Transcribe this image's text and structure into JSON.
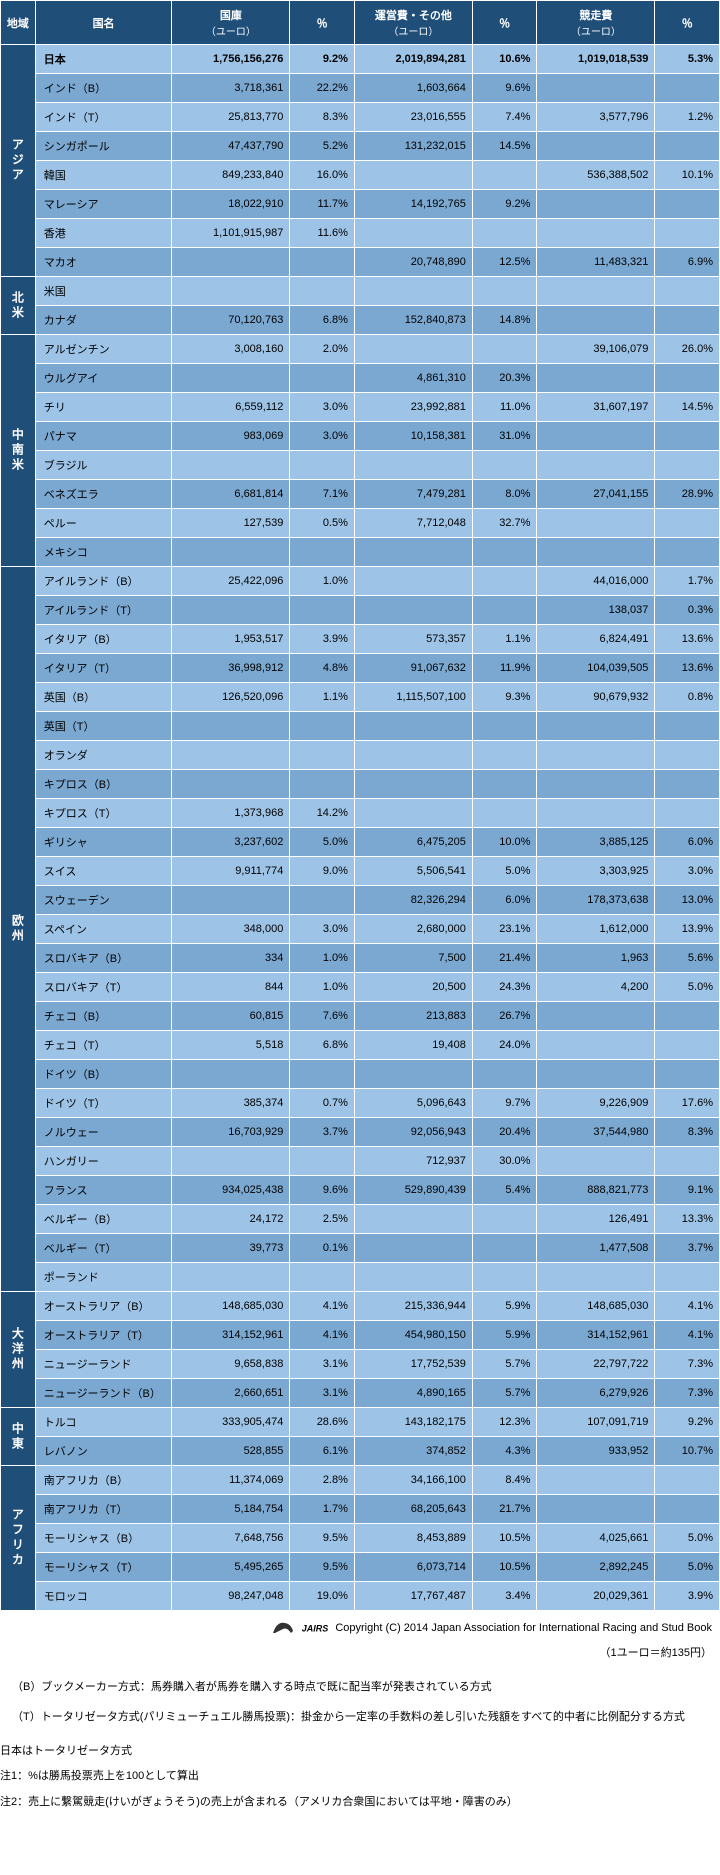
{
  "headers": {
    "region": "地域",
    "country": "国名",
    "treasury": "国庫",
    "treasury_unit": "（ユーロ）",
    "operating": "運営費・その他",
    "operating_unit": "（ユーロ）",
    "racing": "競走費",
    "racing_unit": "（ユーロ）",
    "pct": "％"
  },
  "regions": [
    {
      "name": "アジア",
      "rows": [
        {
          "country": "日本",
          "bold": true,
          "treasury": "1,756,156,276",
          "tpct": "9.2%",
          "operating": "2,019,894,281",
          "opct": "10.6%",
          "racing": "1,019,018,539",
          "rpct": "5.3%"
        },
        {
          "country": "インド（B）",
          "treasury": "3,718,361",
          "tpct": "22.2%",
          "operating": "1,603,664",
          "opct": "9.6%",
          "racing": "",
          "rpct": ""
        },
        {
          "country": "インド（T）",
          "treasury": "25,813,770",
          "tpct": "8.3%",
          "operating": "23,016,555",
          "opct": "7.4%",
          "racing": "3,577,796",
          "rpct": "1.2%"
        },
        {
          "country": "シンガポール",
          "treasury": "47,437,790",
          "tpct": "5.2%",
          "operating": "131,232,015",
          "opct": "14.5%",
          "racing": "",
          "rpct": ""
        },
        {
          "country": "韓国",
          "treasury": "849,233,840",
          "tpct": "16.0%",
          "operating": "",
          "opct": "",
          "racing": "536,388,502",
          "rpct": "10.1%"
        },
        {
          "country": "マレーシア",
          "treasury": "18,022,910",
          "tpct": "11.7%",
          "operating": "14,192,765",
          "opct": "9.2%",
          "racing": "",
          "rpct": ""
        },
        {
          "country": "香港",
          "treasury": "1,101,915,987",
          "tpct": "11.6%",
          "operating": "",
          "opct": "",
          "racing": "",
          "rpct": ""
        },
        {
          "country": "マカオ",
          "treasury": "",
          "tpct": "",
          "operating": "20,748,890",
          "opct": "12.5%",
          "racing": "11,483,321",
          "rpct": "6.9%"
        }
      ]
    },
    {
      "name": "北米",
      "rows": [
        {
          "country": "米国",
          "treasury": "",
          "tpct": "",
          "operating": "",
          "opct": "",
          "racing": "",
          "rpct": ""
        },
        {
          "country": "カナダ",
          "treasury": "70,120,763",
          "tpct": "6.8%",
          "operating": "152,840,873",
          "opct": "14.8%",
          "racing": "",
          "rpct": ""
        }
      ]
    },
    {
      "name": "中南米",
      "rows": [
        {
          "country": "アルゼンチン",
          "treasury": "3,008,160",
          "tpct": "2.0%",
          "operating": "",
          "opct": "",
          "racing": "39,106,079",
          "rpct": "26.0%"
        },
        {
          "country": "ウルグアイ",
          "treasury": "",
          "tpct": "",
          "operating": "4,861,310",
          "opct": "20.3%",
          "racing": "",
          "rpct": ""
        },
        {
          "country": "チリ",
          "treasury": "6,559,112",
          "tpct": "3.0%",
          "operating": "23,992,881",
          "opct": "11.0%",
          "racing": "31,607,197",
          "rpct": "14.5%"
        },
        {
          "country": "パナマ",
          "treasury": "983,069",
          "tpct": "3.0%",
          "operating": "10,158,381",
          "opct": "31.0%",
          "racing": "",
          "rpct": ""
        },
        {
          "country": "ブラジル",
          "treasury": "",
          "tpct": "",
          "operating": "",
          "opct": "",
          "racing": "",
          "rpct": ""
        },
        {
          "country": "ベネズエラ",
          "treasury": "6,681,814",
          "tpct": "7.1%",
          "operating": "7,479,281",
          "opct": "8.0%",
          "racing": "27,041,155",
          "rpct": "28.9%"
        },
        {
          "country": "ペルー",
          "treasury": "127,539",
          "tpct": "0.5%",
          "operating": "7,712,048",
          "opct": "32.7%",
          "racing": "",
          "rpct": ""
        },
        {
          "country": "メキシコ",
          "treasury": "",
          "tpct": "",
          "operating": "",
          "opct": "",
          "racing": "",
          "rpct": ""
        }
      ]
    },
    {
      "name": "欧州",
      "rows": [
        {
          "country": "アイルランド（B）",
          "treasury": "25,422,096",
          "tpct": "1.0%",
          "operating": "",
          "opct": "",
          "racing": "44,016,000",
          "rpct": "1.7%"
        },
        {
          "country": "アイルランド（T）",
          "treasury": "",
          "tpct": "",
          "operating": "",
          "opct": "",
          "racing": "138,037",
          "rpct": "0.3%"
        },
        {
          "country": "イタリア（B）",
          "treasury": "1,953,517",
          "tpct": "3.9%",
          "operating": "573,357",
          "opct": "1.1%",
          "racing": "6,824,491",
          "rpct": "13.6%"
        },
        {
          "country": "イタリア（T）",
          "treasury": "36,998,912",
          "tpct": "4.8%",
          "operating": "91,067,632",
          "opct": "11.9%",
          "racing": "104,039,505",
          "rpct": "13.6%"
        },
        {
          "country": "英国（B）",
          "treasury": "126,520,096",
          "tpct": "1.1%",
          "operating": "1,115,507,100",
          "opct": "9.3%",
          "racing": "90,679,932",
          "rpct": "0.8%"
        },
        {
          "country": "英国（T）",
          "treasury": "",
          "tpct": "",
          "operating": "",
          "opct": "",
          "racing": "",
          "rpct": ""
        },
        {
          "country": "オランダ",
          "treasury": "",
          "tpct": "",
          "operating": "",
          "opct": "",
          "racing": "",
          "rpct": ""
        },
        {
          "country": "キプロス（B）",
          "treasury": "",
          "tpct": "",
          "operating": "",
          "opct": "",
          "racing": "",
          "rpct": ""
        },
        {
          "country": "キプロス（T）",
          "treasury": "1,373,968",
          "tpct": "14.2%",
          "operating": "",
          "opct": "",
          "racing": "",
          "rpct": ""
        },
        {
          "country": "ギリシャ",
          "treasury": "3,237,602",
          "tpct": "5.0%",
          "operating": "6,475,205",
          "opct": "10.0%",
          "racing": "3,885,125",
          "rpct": "6.0%"
        },
        {
          "country": "スイス",
          "treasury": "9,911,774",
          "tpct": "9.0%",
          "operating": "5,506,541",
          "opct": "5.0%",
          "racing": "3,303,925",
          "rpct": "3.0%"
        },
        {
          "country": "スウェーデン",
          "treasury": "",
          "tpct": "",
          "operating": "82,326,294",
          "opct": "6.0%",
          "racing": "178,373,638",
          "rpct": "13.0%"
        },
        {
          "country": "スペイン",
          "treasury": "348,000",
          "tpct": "3.0%",
          "operating": "2,680,000",
          "opct": "23.1%",
          "racing": "1,612,000",
          "rpct": "13.9%"
        },
        {
          "country": "スロバキア（B）",
          "treasury": "334",
          "tpct": "1.0%",
          "operating": "7,500",
          "opct": "21.4%",
          "racing": "1,963",
          "rpct": "5.6%"
        },
        {
          "country": "スロバキア（T）",
          "treasury": "844",
          "tpct": "1.0%",
          "operating": "20,500",
          "opct": "24.3%",
          "racing": "4,200",
          "rpct": "5.0%"
        },
        {
          "country": "チェコ（B）",
          "treasury": "60,815",
          "tpct": "7.6%",
          "operating": "213,883",
          "opct": "26.7%",
          "racing": "",
          "rpct": ""
        },
        {
          "country": "チェコ（T）",
          "treasury": "5,518",
          "tpct": "6.8%",
          "operating": "19,408",
          "opct": "24.0%",
          "racing": "",
          "rpct": ""
        },
        {
          "country": "ドイツ（B）",
          "treasury": "",
          "tpct": "",
          "operating": "",
          "opct": "",
          "racing": "",
          "rpct": ""
        },
        {
          "country": "ドイツ（T）",
          "treasury": "385,374",
          "tpct": "0.7%",
          "operating": "5,096,643",
          "opct": "9.7%",
          "racing": "9,226,909",
          "rpct": "17.6%"
        },
        {
          "country": "ノルウェー",
          "treasury": "16,703,929",
          "tpct": "3.7%",
          "operating": "92,056,943",
          "opct": "20.4%",
          "racing": "37,544,980",
          "rpct": "8.3%"
        },
        {
          "country": "ハンガリー",
          "treasury": "",
          "tpct": "",
          "operating": "712,937",
          "opct": "30.0%",
          "racing": "",
          "rpct": ""
        },
        {
          "country": "フランス",
          "treasury": "934,025,438",
          "tpct": "9.6%",
          "operating": "529,890,439",
          "opct": "5.4%",
          "racing": "888,821,773",
          "rpct": "9.1%"
        },
        {
          "country": "ベルギー（B）",
          "treasury": "24,172",
          "tpct": "2.5%",
          "operating": "",
          "opct": "",
          "racing": "126,491",
          "rpct": "13.3%"
        },
        {
          "country": "ベルギー（T）",
          "treasury": "39,773",
          "tpct": "0.1%",
          "operating": "",
          "opct": "",
          "racing": "1,477,508",
          "rpct": "3.7%"
        },
        {
          "country": "ポーランド",
          "treasury": "",
          "tpct": "",
          "operating": "",
          "opct": "",
          "racing": "",
          "rpct": ""
        }
      ]
    },
    {
      "name": "大洋州",
      "rows": [
        {
          "country": "オーストラリア（B）",
          "treasury": "148,685,030",
          "tpct": "4.1%",
          "operating": "215,336,944",
          "opct": "5.9%",
          "racing": "148,685,030",
          "rpct": "4.1%"
        },
        {
          "country": "オーストラリア（T）",
          "treasury": "314,152,961",
          "tpct": "4.1%",
          "operating": "454,980,150",
          "opct": "5.9%",
          "racing": "314,152,961",
          "rpct": "4.1%"
        },
        {
          "country": "ニュージーランド",
          "treasury": "9,658,838",
          "tpct": "3.1%",
          "operating": "17,752,539",
          "opct": "5.7%",
          "racing": "22,797,722",
          "rpct": "7.3%"
        },
        {
          "country": "ニュージーランド（B）",
          "treasury": "2,660,651",
          "tpct": "3.1%",
          "operating": "4,890,165",
          "opct": "5.7%",
          "racing": "6,279,926",
          "rpct": "7.3%"
        }
      ]
    },
    {
      "name": "中東",
      "rows": [
        {
          "country": "トルコ",
          "treasury": "333,905,474",
          "tpct": "28.6%",
          "operating": "143,182,175",
          "opct": "12.3%",
          "racing": "107,091,719",
          "rpct": "9.2%"
        },
        {
          "country": "レバノン",
          "treasury": "528,855",
          "tpct": "6.1%",
          "operating": "374,852",
          "opct": "4.3%",
          "racing": "933,952",
          "rpct": "10.7%"
        }
      ]
    },
    {
      "name": "アフリカ",
      "rows": [
        {
          "country": "南アフリカ（B）",
          "treasury": "11,374,069",
          "tpct": "2.8%",
          "operating": "34,166,100",
          "opct": "8.4%",
          "racing": "",
          "rpct": ""
        },
        {
          "country": "南アフリカ（T）",
          "treasury": "5,184,754",
          "tpct": "1.7%",
          "operating": "68,205,643",
          "opct": "21.7%",
          "racing": "",
          "rpct": ""
        },
        {
          "country": "モーリシャス（B）",
          "treasury": "7,648,756",
          "tpct": "9.5%",
          "operating": "8,453,889",
          "opct": "10.5%",
          "racing": "4,025,661",
          "rpct": "5.0%"
        },
        {
          "country": "モーリシャス（T）",
          "treasury": "5,495,265",
          "tpct": "9.5%",
          "operating": "6,073,714",
          "opct": "10.5%",
          "racing": "2,892,245",
          "rpct": "5.0%"
        },
        {
          "country": "モロッコ",
          "treasury": "98,247,048",
          "tpct": "19.0%",
          "operating": "17,767,487",
          "opct": "3.4%",
          "racing": "20,029,361",
          "rpct": "3.9%"
        }
      ]
    }
  ],
  "notes": {
    "copyright": "Copyright (C) 2014 Japan Association for International Racing and Stud Book",
    "logo": "JAIRS",
    "euro": "（1ユーロ＝約135円）",
    "b_note": "（B）ブックメーカー方式：馬券購入者が馬券を購入する時点で既に配当率が発表されている方式",
    "t_note": "（T）トータリゼータ方式(パリミューチュエル勝馬投票)：掛金から一定率の手数料の差し引いた残額をすべて的中者に比例配分する方式",
    "japan_note": "日本はトータリゼータ方式",
    "note1": "注1：%は勝馬投票売上を100として算出",
    "note2": "注2：売上に繋駕競走(けいがぎょうそう)の売上が含まれる（アメリカ合衆国においては平地・障害のみ）"
  }
}
